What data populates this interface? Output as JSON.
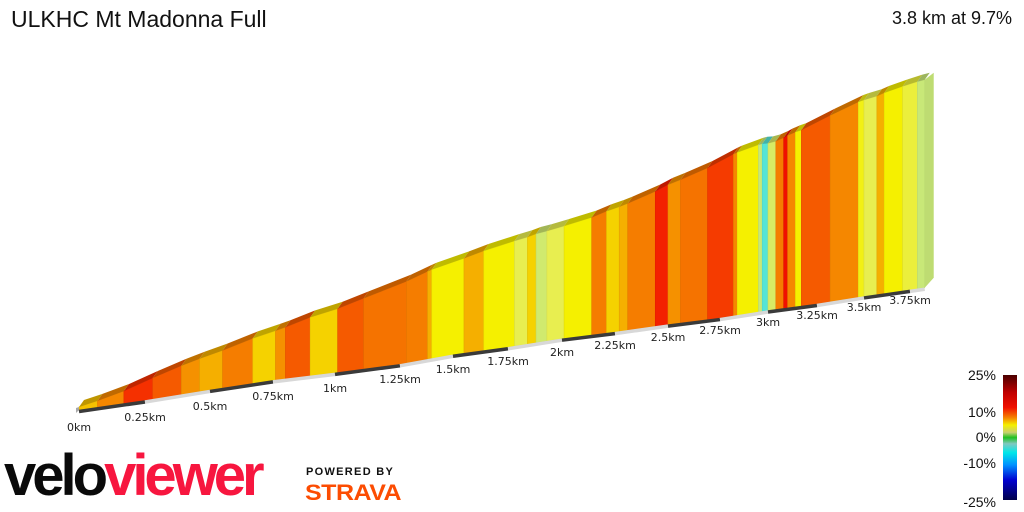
{
  "header": {
    "title": "ULKHC Mt Madonna Full",
    "summary": "3.8 km at 9.7%"
  },
  "chart_data": {
    "type": "area",
    "subtype": "3d-gradient-profile",
    "distance_km": 3.8,
    "avg_gradient_pct": 9.7,
    "x_unit": "km",
    "tick_labels": [
      "0km",
      "0.25km",
      "0.5km",
      "0.75km",
      "1km",
      "1.25km",
      "1.5km",
      "1.75km",
      "2km",
      "2.25km",
      "2.5km",
      "2.75km",
      "3km",
      "3.25km",
      "3.5km",
      "3.75km"
    ],
    "segments": [
      {
        "from": 0,
        "to": 0.07,
        "gradient": 10
      },
      {
        "from": 0.07,
        "to": 0.17,
        "gradient": 12
      },
      {
        "from": 0.17,
        "to": 0.28,
        "gradient": 16
      },
      {
        "from": 0.28,
        "to": 0.39,
        "gradient": 14
      },
      {
        "from": 0.39,
        "to": 0.46,
        "gradient": 11.5
      },
      {
        "from": 0.46,
        "to": 0.55,
        "gradient": 10.5
      },
      {
        "from": 0.55,
        "to": 0.67,
        "gradient": 12.5
      },
      {
        "from": 0.67,
        "to": 0.76,
        "gradient": 9.5
      },
      {
        "from": 0.76,
        "to": 0.8,
        "gradient": 11.5
      },
      {
        "from": 0.8,
        "to": 0.9,
        "gradient": 14
      },
      {
        "from": 0.9,
        "to": 1.01,
        "gradient": 9.5
      },
      {
        "from": 1.01,
        "to": 1.11,
        "gradient": 14
      },
      {
        "from": 1.11,
        "to": 1.28,
        "gradient": 13
      },
      {
        "from": 1.28,
        "to": 1.38,
        "gradient": 12.5
      },
      {
        "from": 1.38,
        "to": 1.4,
        "gradient": 10.5
      },
      {
        "from": 1.4,
        "to": 1.55,
        "gradient": 8
      },
      {
        "from": 1.55,
        "to": 1.64,
        "gradient": 10.5
      },
      {
        "from": 1.64,
        "to": 1.78,
        "gradient": 8
      },
      {
        "from": 1.78,
        "to": 1.84,
        "gradient": 6
      },
      {
        "from": 1.84,
        "to": 1.88,
        "gradient": 9.5
      },
      {
        "from": 1.88,
        "to": 1.93,
        "gradient": 4.5
      },
      {
        "from": 1.93,
        "to": 2.01,
        "gradient": 6
      },
      {
        "from": 2.01,
        "to": 2.14,
        "gradient": 8
      },
      {
        "from": 2.14,
        "to": 2.21,
        "gradient": 12.5
      },
      {
        "from": 2.21,
        "to": 2.27,
        "gradient": 9.5
      },
      {
        "from": 2.27,
        "to": 2.31,
        "gradient": 10.5
      },
      {
        "from": 2.31,
        "to": 2.44,
        "gradient": 12.5
      },
      {
        "from": 2.44,
        "to": 2.5,
        "gradient": 16.5
      },
      {
        "from": 2.5,
        "to": 2.56,
        "gradient": 11.5
      },
      {
        "from": 2.56,
        "to": 2.69,
        "gradient": 13
      },
      {
        "from": 2.69,
        "to": 2.82,
        "gradient": 15.5
      },
      {
        "from": 2.82,
        "to": 2.84,
        "gradient": 12
      },
      {
        "from": 2.84,
        "to": 2.95,
        "gradient": 8
      },
      {
        "from": 2.95,
        "to": 2.97,
        "gradient": 4
      },
      {
        "from": 2.97,
        "to": 3.0,
        "gradient": -3
      },
      {
        "from": 3.0,
        "to": 3.04,
        "gradient": 5
      },
      {
        "from": 3.04,
        "to": 3.08,
        "gradient": 12.5
      },
      {
        "from": 3.08,
        "to": 3.1,
        "gradient": 17
      },
      {
        "from": 3.1,
        "to": 3.14,
        "gradient": 12
      },
      {
        "from": 3.14,
        "to": 3.17,
        "gradient": 8
      },
      {
        "from": 3.17,
        "to": 3.32,
        "gradient": 14
      },
      {
        "from": 3.32,
        "to": 3.47,
        "gradient": 12
      },
      {
        "from": 3.47,
        "to": 3.5,
        "gradient": 7.5
      },
      {
        "from": 3.5,
        "to": 3.57,
        "gradient": 6
      },
      {
        "from": 3.57,
        "to": 3.61,
        "gradient": 10.5
      },
      {
        "from": 3.61,
        "to": 3.71,
        "gradient": 8
      },
      {
        "from": 3.71,
        "to": 3.79,
        "gradient": 6.5
      },
      {
        "from": 3.79,
        "to": 3.83,
        "gradient": 4
      }
    ],
    "legend": {
      "labels": [
        "25%",
        "10%",
        "0%",
        "-10%",
        "-25%"
      ],
      "range": [
        -25,
        25
      ],
      "placement": "bottom-right"
    }
  },
  "branding": {
    "logo_part1": "velo",
    "logo_part2": "viewer",
    "powered_by": "POWERED BY",
    "strava": "STRAVA"
  },
  "colors": {
    "velo": "#0a0a0a",
    "viewer": "#f7163f",
    "strava": "#fc4c02"
  }
}
